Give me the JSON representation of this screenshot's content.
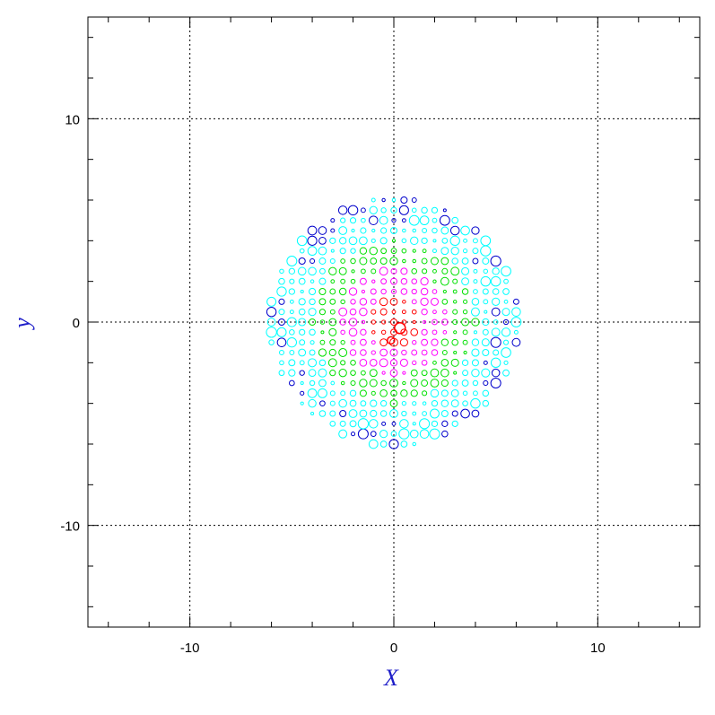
{
  "chart_data": {
    "type": "scatter",
    "title": "",
    "xlabel": "X",
    "ylabel": "y",
    "xlim": [
      -15,
      15
    ],
    "ylim": [
      -15,
      15
    ],
    "xticks": [
      -10,
      0,
      10
    ],
    "yticks": [
      -10,
      0,
      10
    ],
    "xtick_labels": [
      "-10",
      "0",
      "10"
    ],
    "ytick_labels": [
      "-10",
      "0",
      "10"
    ],
    "grid": true,
    "grid_style": "dotted",
    "marker": "open-circle",
    "lattice_step": 0.5,
    "disk_radius": 6.1,
    "color_bands": [
      {
        "max_radius": 1.3,
        "color": "#ff0000"
      },
      {
        "max_radius": 2.6,
        "color": "#ff00ff"
      },
      {
        "max_radius": 4.0,
        "color": "#00e000"
      },
      {
        "max_radius": 6.1,
        "color": "#00ffff"
      }
    ],
    "edge_color": "#0000cc",
    "center_marker": {
      "x": 0.3,
      "y": -0.3,
      "color": "#ff0000"
    }
  }
}
